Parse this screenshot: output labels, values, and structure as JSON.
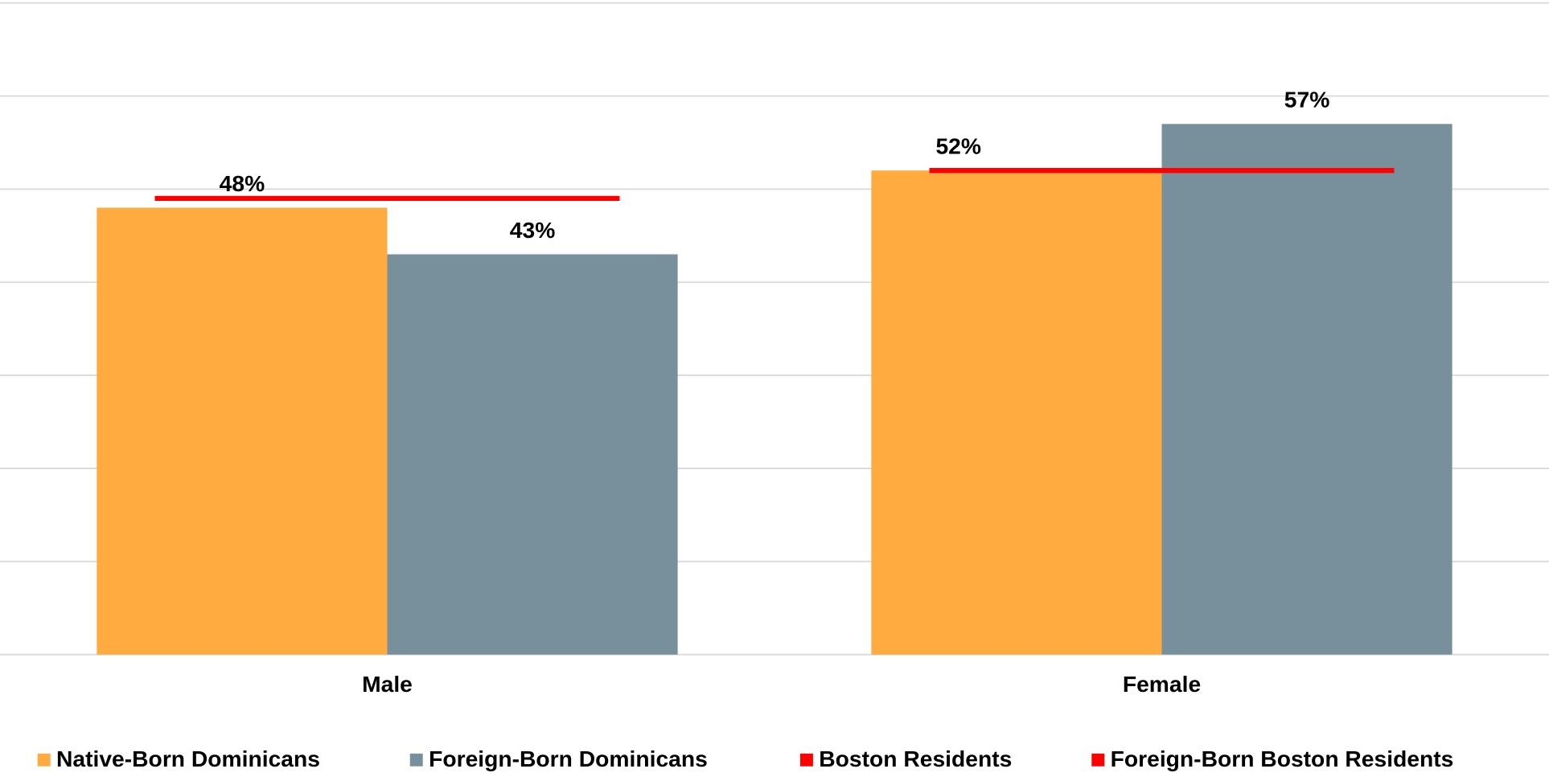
{
  "chart_data": {
    "type": "bar",
    "categories": [
      "Male",
      "Female"
    ],
    "series": [
      {
        "name": "Native-Born Dominicans",
        "color": "#ffab40",
        "values": [
          48,
          52
        ],
        "value_labels": [
          "48%",
          "52%"
        ]
      },
      {
        "name": "Foreign-Born Dominicans",
        "color": "#78909c",
        "values": [
          43,
          57
        ],
        "value_labels": [
          "43%",
          "57%"
        ]
      },
      {
        "name": "Boston Residents",
        "color": "#ff0000",
        "type": "line",
        "values": [
          49,
          52
        ]
      },
      {
        "name": "Foreign-Born Boston Residents",
        "color": "#ff0000",
        "type": "line",
        "values": [
          49,
          52
        ]
      }
    ],
    "ylim": [
      0,
      70
    ],
    "yticks": [
      0,
      10,
      20,
      30,
      40,
      50,
      60,
      70
    ],
    "grid": true,
    "legend": "bottom"
  }
}
